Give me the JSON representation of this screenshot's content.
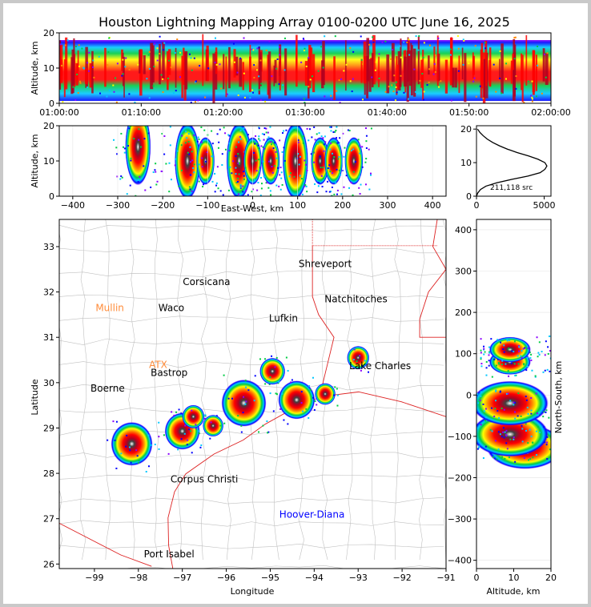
{
  "title": "Houston Lightning Mapping Array 0100-0200 UTC June 16, 2025",
  "colors": {
    "frame": "#c9c9c9",
    "county_lines": "#c0c0c0",
    "state_lines": "#dd2222",
    "density_scale": [
      "#8a00ff",
      "#0000ff",
      "#00c8ff",
      "#00cc44",
      "#ffff00",
      "#ff8800",
      "#ff0000",
      "#b00020",
      "#000000",
      "#ffffff"
    ]
  },
  "chart_data": [
    {
      "id": "time-altitude",
      "type": "heatmap",
      "xlabel": "",
      "ylabel": "Altitude, km",
      "xlim": [
        "01:00:00",
        "02:00:00"
      ],
      "ylim": [
        0,
        20
      ],
      "x_ticks": [
        "01:00:00",
        "01:10:00",
        "01:20:00",
        "01:30:00",
        "01:40:00",
        "01:50:00",
        "02:00:00"
      ],
      "y_ticks": [
        "0",
        "10",
        "20"
      ]
    },
    {
      "id": "eastwest-altitude",
      "type": "heatmap",
      "xlabel": "East-West, km",
      "ylabel": "Altitude, km",
      "xlim": [
        -430,
        430
      ],
      "ylim": [
        0,
        20
      ],
      "x_ticks": [
        "−400",
        "−300",
        "−200",
        "−100",
        "0",
        "100",
        "200",
        "300",
        "400"
      ],
      "y_ticks": [
        "0",
        "10",
        "20"
      ],
      "clusters_x_km": [
        -255,
        -145,
        -105,
        -30,
        0,
        40,
        95,
        150,
        180,
        225
      ]
    },
    {
      "id": "altitude-histogram",
      "type": "line",
      "xlim": [
        0,
        5500
      ],
      "ylim": [
        0,
        21
      ],
      "x_ticks": [
        "0",
        "5000"
      ],
      "y_ticks": [
        "0",
        "10",
        "20"
      ],
      "annotation": "211,118 src",
      "x": [
        0,
        100,
        300,
        700,
        1500,
        2600,
        3800,
        4700,
        5050,
        5200,
        5050,
        4550,
        3850,
        3000,
        2300,
        1700,
        1200,
        800,
        500,
        250,
        80
      ],
      "y": [
        0,
        1,
        2,
        3,
        4,
        5,
        6,
        7,
        8,
        9,
        10,
        11,
        12,
        13,
        14,
        15,
        16,
        17,
        18,
        19,
        20
      ]
    },
    {
      "id": "plan-view-map",
      "type": "scatter",
      "xlabel": "Longitude",
      "ylabel": "Latitude",
      "xlim": [
        -99.8,
        -91
      ],
      "ylim": [
        25.9,
        33.6
      ],
      "x_ticks": [
        "−99",
        "−98",
        "−97",
        "−96",
        "−95",
        "−94",
        "−93",
        "−92",
        "−91"
      ],
      "y_ticks": [
        "26",
        "27",
        "28",
        "29",
        "30",
        "31",
        "32",
        "33"
      ],
      "labels": [
        {
          "text": "Shreveport",
          "lon": -93.75,
          "lat": 32.55,
          "color": "#000000"
        },
        {
          "text": "Corsicana",
          "lon": -96.45,
          "lat": 32.15,
          "color": "#000000"
        },
        {
          "text": "Natchitoches",
          "lon": -93.05,
          "lat": 31.77,
          "color": "#000000"
        },
        {
          "text": "Mullin",
          "lon": -98.65,
          "lat": 31.58,
          "color": "#ff8c3a"
        },
        {
          "text": "Waco",
          "lon": -97.25,
          "lat": 31.58,
          "color": "#000000"
        },
        {
          "text": "Lufkin",
          "lon": -94.7,
          "lat": 31.35,
          "color": "#000000"
        },
        {
          "text": "ATX",
          "lon": -97.55,
          "lat": 30.32,
          "color": "#ff8c3a"
        },
        {
          "text": "Bastrop",
          "lon": -97.3,
          "lat": 30.15,
          "color": "#000000"
        },
        {
          "text": "Lake Charles",
          "lon": -92.5,
          "lat": 30.3,
          "color": "#000000"
        },
        {
          "text": "Boerne",
          "lon": -98.7,
          "lat": 29.8,
          "color": "#000000"
        },
        {
          "text": "Corpus Christi",
          "lon": -96.5,
          "lat": 27.8,
          "color": "#000000"
        },
        {
          "text": "Hoover-Diana",
          "lon": -94.05,
          "lat": 27.02,
          "color": "#0000ff"
        },
        {
          "text": "Port Isabel",
          "lon": -97.3,
          "lat": 26.15,
          "color": "#000000"
        }
      ],
      "storms": [
        {
          "lon": -98.15,
          "lat": 28.65,
          "intensity": 0.9
        },
        {
          "lon": -97.0,
          "lat": 28.93,
          "intensity": 0.7
        },
        {
          "lon": -95.6,
          "lat": 29.55,
          "intensity": 1.0
        },
        {
          "lon": -94.4,
          "lat": 29.62,
          "intensity": 0.75
        },
        {
          "lon": -94.95,
          "lat": 30.25,
          "intensity": 0.4
        },
        {
          "lon": -93.0,
          "lat": 30.55,
          "intensity": 0.3
        },
        {
          "lon": -96.75,
          "lat": 29.25,
          "intensity": 0.3
        },
        {
          "lon": -96.3,
          "lat": 29.05,
          "intensity": 0.25
        },
        {
          "lon": -93.75,
          "lat": 29.75,
          "intensity": 0.25
        }
      ]
    },
    {
      "id": "altitude-northsouth",
      "type": "heatmap",
      "xlabel": "Altitude, km",
      "ylabel": "North-South, km",
      "xlim": [
        0,
        20
      ],
      "ylim": [
        -420,
        425
      ],
      "x_ticks": [
        "0",
        "10",
        "20"
      ],
      "y_ticks": [
        "−400",
        "−300",
        "−200",
        "−100",
        "0",
        "100",
        "200",
        "300",
        "400"
      ],
      "clusters_ns_km": [
        -125,
        -95,
        -20,
        80,
        110
      ]
    }
  ]
}
